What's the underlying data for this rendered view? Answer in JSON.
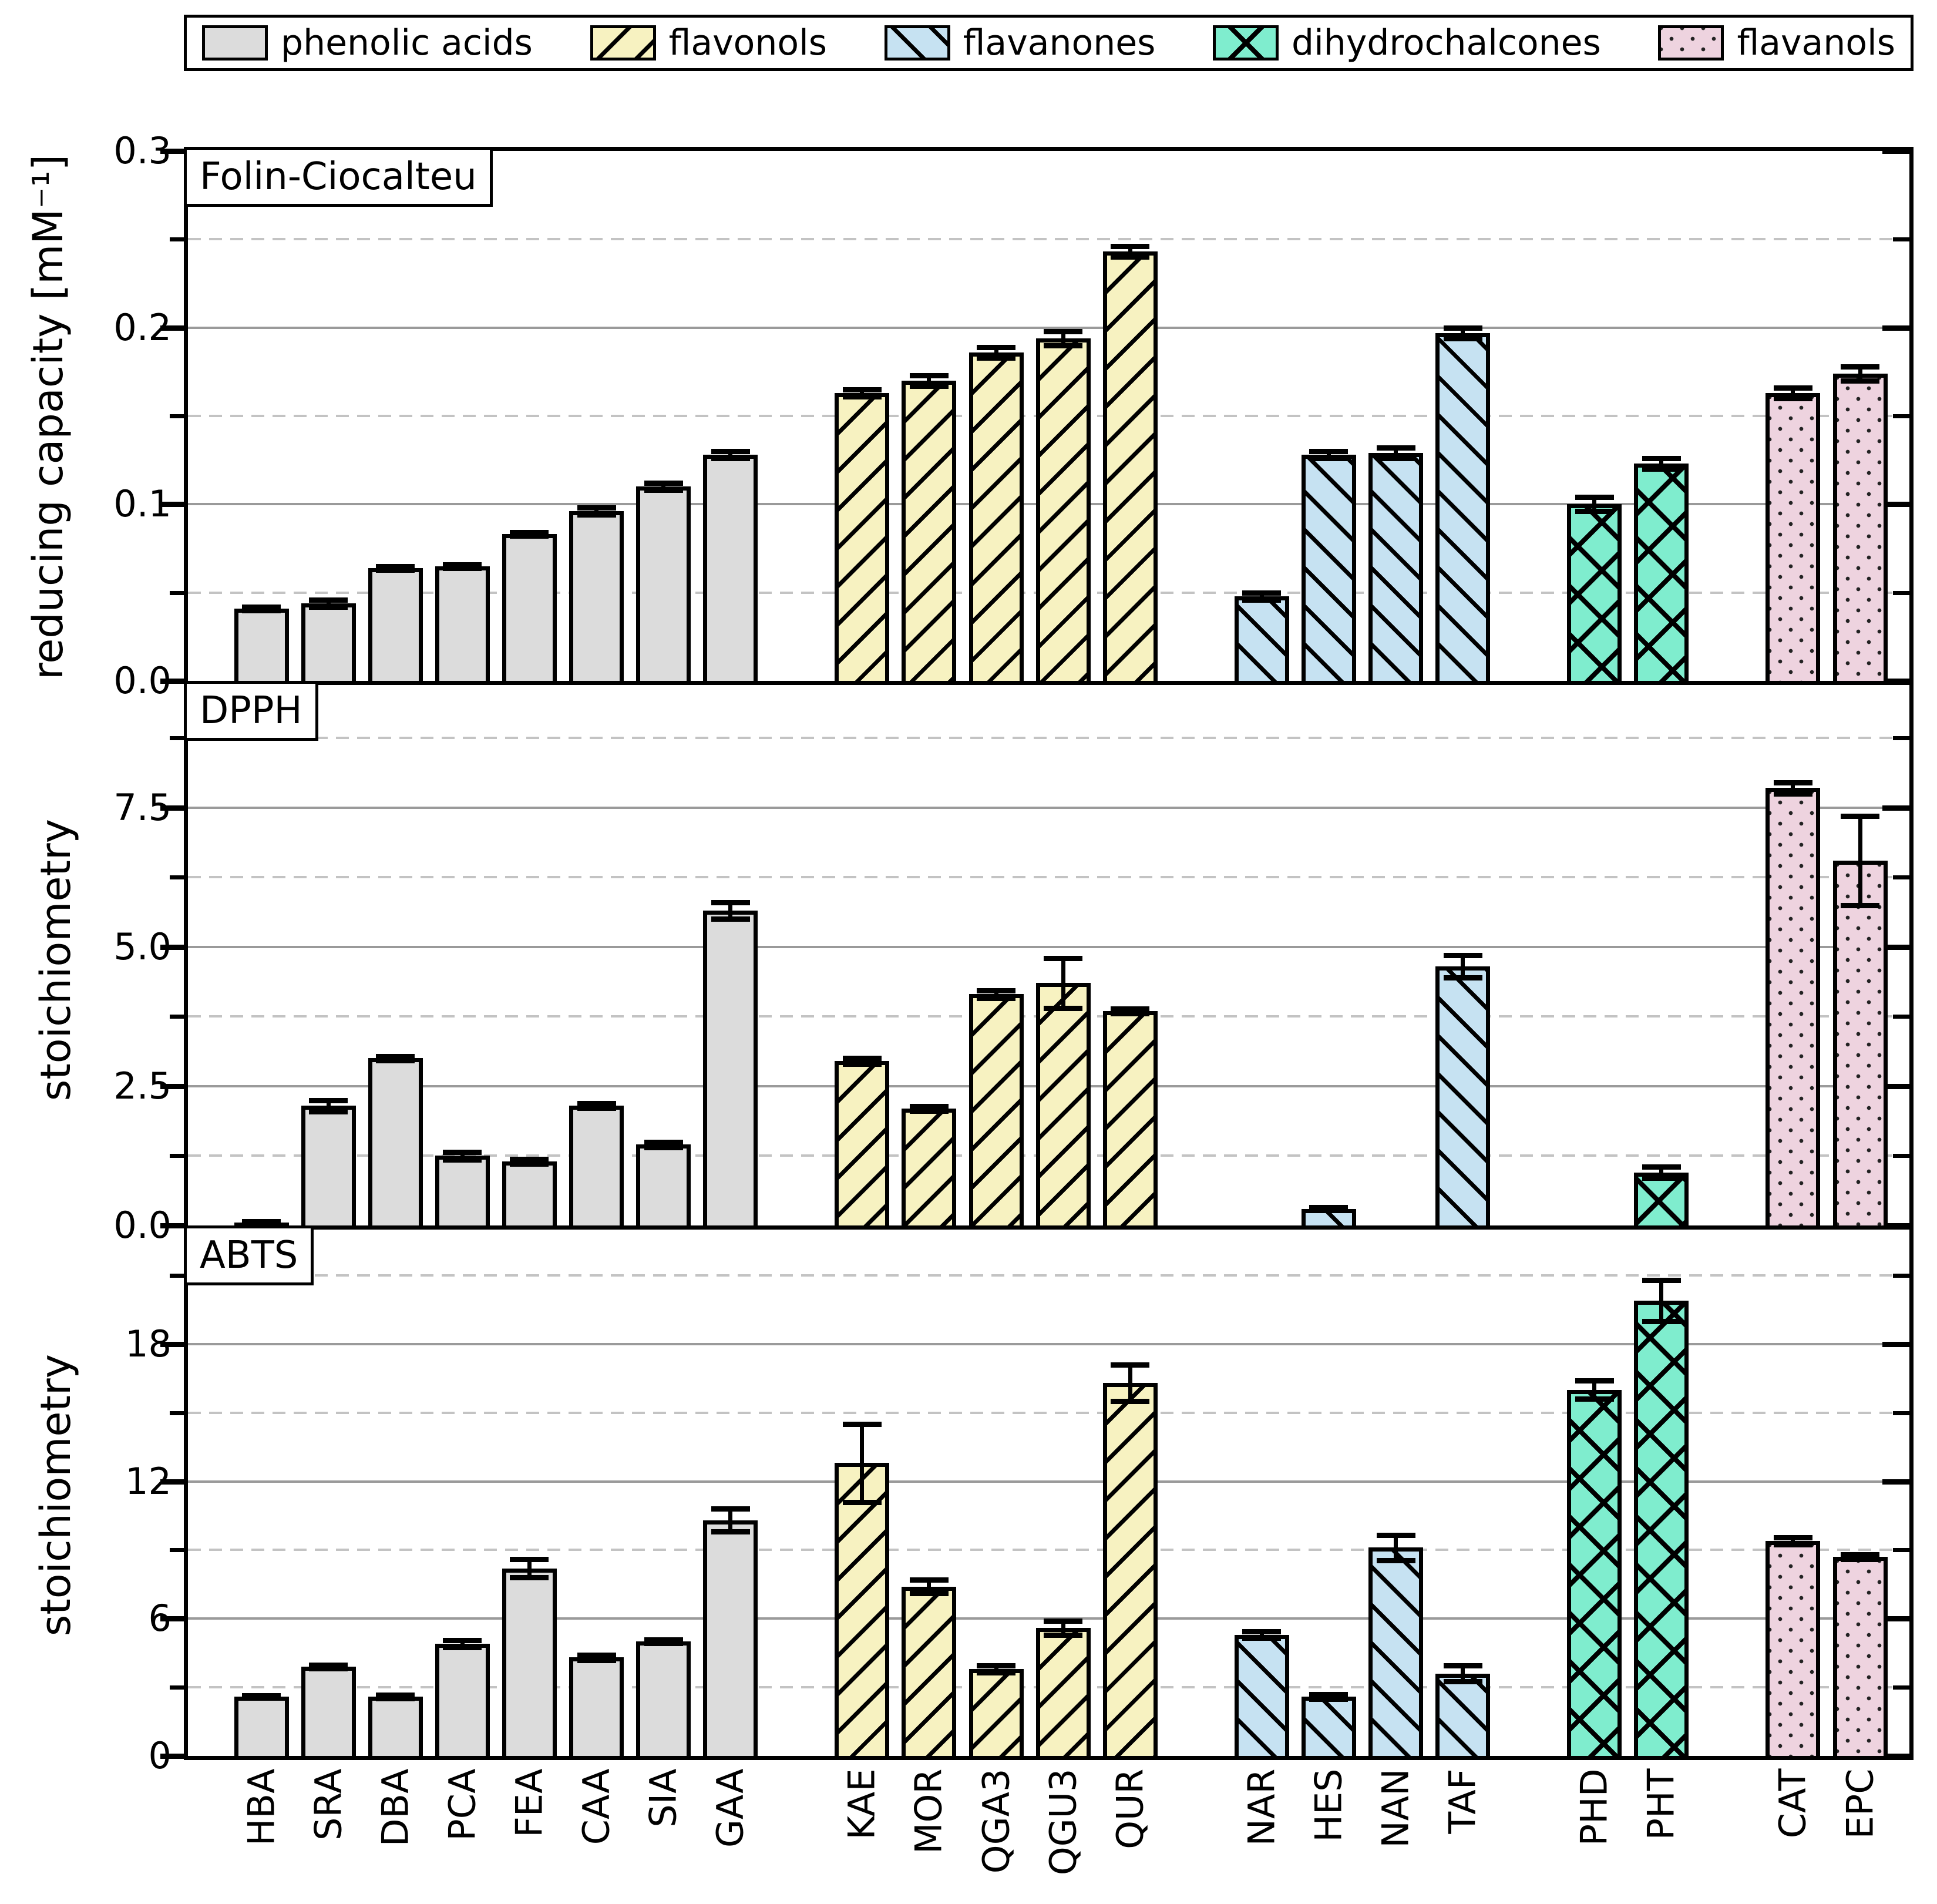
{
  "figure_background": "#FFFFFF",
  "legend": {
    "items": [
      {
        "label": "phenolic acids",
        "color": "#DCDCDC",
        "hatch": "none"
      },
      {
        "label": "flavonols",
        "color": "#F7F2C1",
        "hatch": "forward-diagonal"
      },
      {
        "label": "flavanones",
        "color": "#C6E2F2",
        "hatch": "backward-diagonal"
      },
      {
        "label": "dihydrochalcones",
        "color": "#7FEDCE",
        "hatch": "crosshatch"
      },
      {
        "label": "flavanols",
        "color": "#EED3DF",
        "hatch": "dots"
      }
    ]
  },
  "chart_data": {
    "type": "bar",
    "categories": [
      "HBA",
      "SRA",
      "DBA",
      "PCA",
      "FEA",
      "CAA",
      "SIA",
      "GAA",
      "KAE",
      "MOR",
      "QGA3",
      "QGU3",
      "QUR",
      "NAR",
      "HES",
      "NAN",
      "TAF",
      "PHD",
      "PHT",
      "CAT",
      "EPC"
    ],
    "group_of_category": [
      0,
      0,
      0,
      0,
      0,
      0,
      0,
      0,
      1,
      1,
      1,
      1,
      1,
      2,
      2,
      2,
      2,
      3,
      3,
      4,
      4
    ],
    "groups": [
      "phenolic acids",
      "flavonols",
      "flavanones",
      "dihydrochalcones",
      "flavanols"
    ],
    "grid": "major solid, minor dashed",
    "legend_position": "top",
    "panels": [
      {
        "title": "Folin-Ciocalteu",
        "ylabel": "reducing capacity [mM⁻¹]",
        "ylim": [
          0,
          0.3
        ],
        "yticks": [
          0,
          0.1,
          0.2,
          0.3
        ],
        "ytick_labels": [
          "0.0",
          "0.1",
          "0.2",
          "0.3"
        ],
        "minor_gridlines": [
          0.05,
          0.15,
          0.25
        ],
        "values": [
          0.041,
          0.044,
          0.064,
          0.065,
          0.083,
          0.096,
          0.11,
          0.128,
          0.163,
          0.17,
          0.186,
          0.194,
          0.243,
          0.048,
          0.128,
          0.129,
          0.197,
          0.1,
          0.123,
          0.163,
          0.174
        ],
        "errors": [
          0.001,
          0.002,
          0.001,
          0.001,
          0.001,
          0.002,
          0.002,
          0.002,
          0.002,
          0.003,
          0.003,
          0.004,
          0.003,
          0.002,
          0.002,
          0.003,
          0.003,
          0.004,
          0.003,
          0.003,
          0.004
        ]
      },
      {
        "title": "DPPH",
        "ylabel": "stoichiometry",
        "ylim": [
          0,
          9.7
        ],
        "yticks": [
          0,
          2.5,
          5.0,
          7.5
        ],
        "ytick_labels": [
          "0.0",
          "2.5",
          "5.0",
          "7.5"
        ],
        "minor_gridlines": [
          1.25,
          3.75,
          6.25,
          8.75
        ],
        "values": [
          0.05,
          2.15,
          3.0,
          1.25,
          1.15,
          2.15,
          1.45,
          5.65,
          2.95,
          2.1,
          4.15,
          4.35,
          3.85,
          0,
          0.3,
          0,
          4.65,
          0,
          0.95,
          7.85,
          6.55
        ],
        "errors": [
          0.02,
          0.1,
          0.04,
          0.07,
          0.04,
          0.04,
          0.05,
          0.15,
          0.05,
          0.04,
          0.07,
          0.45,
          0.04,
          0,
          0.03,
          0,
          0.2,
          0,
          0.1,
          0.1,
          0.8
        ]
      },
      {
        "title": "ABTS",
        "ylabel": "stoichiometry",
        "ylim": [
          0,
          23
        ],
        "yticks": [
          0,
          6,
          12,
          18
        ],
        "ytick_labels": [
          "0",
          "6",
          "12",
          "18"
        ],
        "minor_gridlines": [
          3,
          9,
          15,
          21
        ],
        "values": [
          2.6,
          3.9,
          2.6,
          4.9,
          8.2,
          4.3,
          5.0,
          10.3,
          12.8,
          7.4,
          3.8,
          5.6,
          16.3,
          5.3,
          2.6,
          9.1,
          3.6,
          16.0,
          19.9,
          9.4,
          8.7
        ],
        "errors": [
          0.05,
          0.08,
          0.08,
          0.15,
          0.4,
          0.12,
          0.08,
          0.5,
          1.7,
          0.3,
          0.15,
          0.3,
          0.8,
          0.15,
          0.1,
          0.55,
          0.35,
          0.4,
          0.9,
          0.15,
          0.1
        ]
      }
    ]
  }
}
